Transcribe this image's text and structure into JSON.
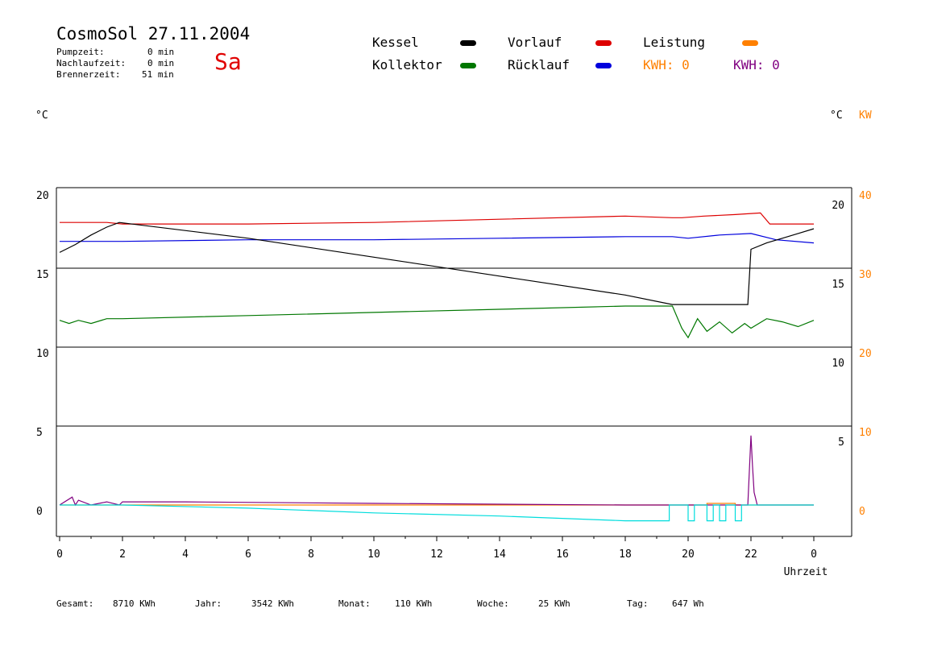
{
  "header": {
    "title": "CosmoSol 27.11.2004",
    "day": "Sa",
    "pumpzeit_label": "Pumpzeit:",
    "pumpzeit_value": "0 min",
    "nachlauf_label": "Nachlaufzeit:",
    "nachlauf_value": "0 min",
    "brenner_label": "Brennerzeit:",
    "brenner_value": "51 min"
  },
  "legend": {
    "kessel": "Kessel",
    "kollektor": "Kollektor",
    "vorlauf": "Vorlauf",
    "ruecklauf": "Rücklauf",
    "leistung": "Leistung",
    "kwh_orange": "KWH: 0",
    "kwh_purple": "KWH: 0"
  },
  "units": {
    "left": "°C",
    "right_c": "°C",
    "right_kw": "KW"
  },
  "footer": {
    "gesamt_label": "Gesamt:",
    "gesamt_value": "8710 KWh",
    "jahr_label": "Jahr:",
    "jahr_value": "3542 KWh",
    "monat_label": "Monat:",
    "monat_value": "110 KWh",
    "woche_label": "Woche:",
    "woche_value": "25 KWh",
    "tag_label": "Tag:",
    "tag_value": "647 Wh"
  },
  "colors": {
    "kessel": "#000000",
    "kollektor": "#007700",
    "vorlauf": "#dd0000",
    "ruecklauf": "#0000dd",
    "leistung": "#ff8000",
    "kwh_purple": "#800080",
    "cyan": "#00dddd",
    "day": "#e00000"
  },
  "chart_data": {
    "type": "line",
    "xlabel": "Uhrzeit",
    "x_ticks": [
      "0",
      "2",
      "4",
      "6",
      "8",
      "10",
      "12",
      "14",
      "16",
      "18",
      "20",
      "22",
      "0"
    ],
    "y_left_ticks": [
      "20",
      "15",
      "10",
      "5",
      "0"
    ],
    "y_right_c_ticks": [
      "20",
      "15",
      "10",
      "5"
    ],
    "y_right_kw_ticks": [
      "40",
      "30",
      "20",
      "10",
      "0"
    ],
    "xlim": [
      0,
      24
    ],
    "ylim": [
      -2,
      20
    ],
    "grid": true,
    "series": [
      {
        "name": "Vorlauf",
        "color": "#dd0000",
        "x": [
          0,
          1.5,
          2,
          6,
          10,
          14,
          18,
          19.5,
          19.8,
          20.5,
          21.5,
          22.3,
          22.6,
          24
        ],
        "y": [
          17.9,
          17.9,
          17.8,
          17.8,
          17.9,
          18.1,
          18.3,
          18.2,
          18.2,
          18.3,
          18.4,
          18.5,
          17.8,
          17.8
        ]
      },
      {
        "name": "Rücklauf",
        "color": "#0000dd",
        "x": [
          0,
          2,
          6,
          10,
          14,
          18,
          19.5,
          20,
          21,
          22,
          22.8,
          24
        ],
        "y": [
          16.7,
          16.7,
          16.8,
          16.8,
          16.9,
          17.0,
          17.0,
          16.9,
          17.1,
          17.2,
          16.8,
          16.6
        ]
      },
      {
        "name": "Kessel",
        "color": "#000000",
        "x": [
          0,
          0.5,
          1,
          1.5,
          1.9,
          6,
          10,
          14,
          18,
          19.5,
          21.9,
          22,
          22.5,
          23,
          23.5,
          24
        ],
        "y": [
          16.0,
          16.5,
          17.1,
          17.6,
          17.9,
          16.9,
          15.7,
          14.5,
          13.3,
          12.7,
          12.7,
          16.2,
          16.6,
          16.9,
          17.2,
          17.5
        ]
      },
      {
        "name": "Kollektor",
        "color": "#007700",
        "x": [
          0,
          0.3,
          0.6,
          1,
          1.5,
          2,
          6,
          10,
          14,
          18,
          19.5,
          19.8,
          20,
          20.3,
          20.6,
          21,
          21.4,
          21.8,
          22,
          22.5,
          23,
          23.5,
          24
        ],
        "y": [
          11.7,
          11.5,
          11.7,
          11.5,
          11.8,
          11.8,
          12.0,
          12.2,
          12.4,
          12.6,
          12.6,
          11.2,
          10.6,
          11.8,
          11.0,
          11.6,
          10.9,
          11.5,
          11.2,
          11.8,
          11.6,
          11.3,
          11.7
        ]
      },
      {
        "name": "Leistung",
        "color": "#ff8000",
        "x": [
          0,
          20.6,
          20.6,
          21.5,
          21.5,
          22,
          22.3,
          24
        ],
        "y": [
          0,
          0,
          0.1,
          0.1,
          0,
          0,
          0,
          0
        ]
      },
      {
        "name": "KWH",
        "color": "#800080",
        "x": [
          0,
          0.4,
          0.5,
          0.6,
          1,
          1.5,
          1.9,
          2,
          4,
          10,
          18,
          21.9,
          22.0,
          22.05,
          22.1,
          22.2,
          24
        ],
        "y": [
          0,
          0.5,
          0,
          0.3,
          0,
          0.2,
          0,
          0.2,
          0.2,
          0.1,
          0,
          0,
          4.4,
          2.5,
          0.8,
          0,
          0
        ]
      },
      {
        "name": "Cyan",
        "color": "#00dddd",
        "x": [
          0,
          2,
          6,
          10,
          14,
          18,
          19.4,
          19.4,
          20,
          20,
          20.2,
          20.2,
          20.6,
          20.6,
          20.8,
          20.8,
          21,
          21,
          21.2,
          21.2,
          21.5,
          21.5,
          21.7,
          21.7,
          22,
          22,
          24
        ],
        "y": [
          0,
          0,
          -0.2,
          -0.5,
          -0.7,
          -1.0,
          -1.0,
          0,
          0,
          -1.0,
          -1.0,
          0,
          0,
          -1.0,
          -1.0,
          0,
          0,
          -1.0,
          -1.0,
          0,
          0,
          -1.0,
          -1.0,
          0,
          0,
          0,
          0
        ]
      }
    ]
  }
}
